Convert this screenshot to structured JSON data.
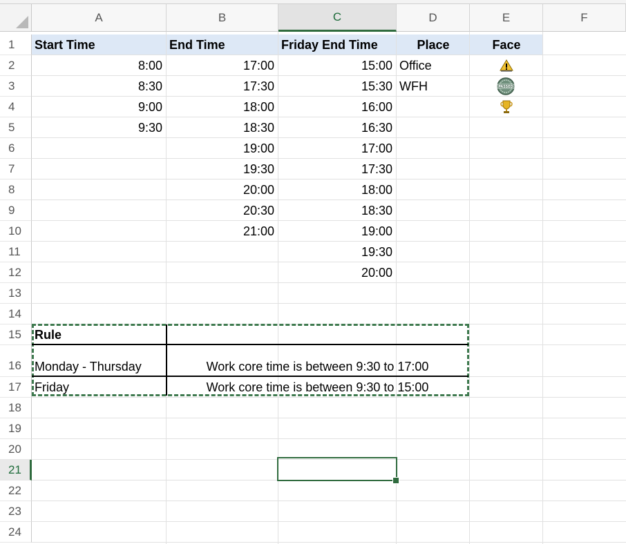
{
  "columns": [
    "A",
    "B",
    "C",
    "D",
    "E",
    "F"
  ],
  "selected_column": "C",
  "rows": [
    "1",
    "2",
    "3",
    "4",
    "5",
    "6",
    "7",
    "8",
    "9",
    "10",
    "11",
    "12",
    "13",
    "14",
    "15",
    "16",
    "17",
    "18",
    "19",
    "20",
    "21",
    "22",
    "23",
    "24"
  ],
  "selected_row": "21",
  "headers": {
    "start_time": "Start Time",
    "end_time": "End Time",
    "friday_end_time": "Friday End Time",
    "place": "Place",
    "face": "Face"
  },
  "start_times": [
    "8:00",
    "8:30",
    "9:00",
    "9:30"
  ],
  "end_times": [
    "17:00",
    "17:30",
    "18:00",
    "18:30",
    "19:00",
    "19:30",
    "20:00",
    "20:30",
    "21:00"
  ],
  "friday_end_times": [
    "15:00",
    "15:30",
    "16:00",
    "16:30",
    "17:00",
    "17:30",
    "18:00",
    "18:30",
    "19:00",
    "19:30",
    "20:00"
  ],
  "places": [
    "Office",
    "WFH"
  ],
  "faces": [
    "warning-icon",
    "passed-badge-icon",
    "trophy-icon"
  ],
  "rule": {
    "title": "Rule",
    "rows": [
      {
        "day": "Monday - Thursday",
        "text": "Work core time is between 9:30 to 17:00"
      },
      {
        "day": "Friday",
        "text": "Work core time is between 9:30 to 15:00"
      }
    ]
  },
  "colors": {
    "accent": "#2f6b3e",
    "header_fill": "#dde8f6"
  }
}
